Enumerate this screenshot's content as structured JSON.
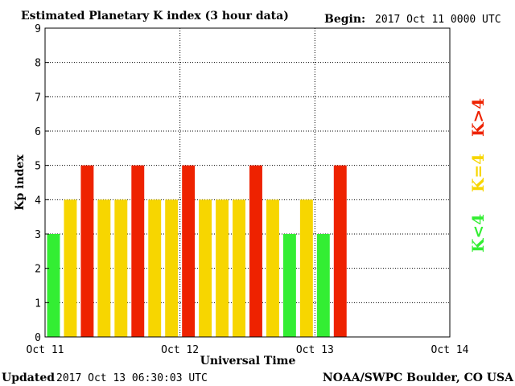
{
  "header": {
    "title": "Estimated Planetary K index (3 hour data)",
    "begin_label": "Begin:",
    "begin_value": "2017 Oct 11 0000 UTC"
  },
  "footer": {
    "updated_label": "Updated",
    "updated_value": "2017 Oct 13 06:30:03 UTC",
    "credit": "NOAA/SWPC Boulder, CO USA"
  },
  "legend": {
    "low": {
      "label": "K<4",
      "color": "#33ee33"
    },
    "mid": {
      "label": "K=4",
      "color": "#f7d600"
    },
    "high": {
      "label": "K>4",
      "color": "#ee2200"
    }
  },
  "chart_data": {
    "type": "bar",
    "title": "Estimated Planetary K index (3 hour data)",
    "xlabel": "Universal Time",
    "ylabel": "Kp index",
    "ylim": [
      0,
      9
    ],
    "yticks": [
      0,
      1,
      2,
      3,
      4,
      5,
      6,
      7,
      8,
      9
    ],
    "xticks": [
      "Oct 11",
      "Oct 12",
      "Oct 13",
      "Oct 14"
    ],
    "periods_total": 24,
    "values": [
      3,
      4,
      5,
      4,
      4,
      5,
      4,
      4,
      5,
      4,
      4,
      4,
      5,
      4,
      3,
      4,
      3,
      5
    ],
    "grid": true
  }
}
